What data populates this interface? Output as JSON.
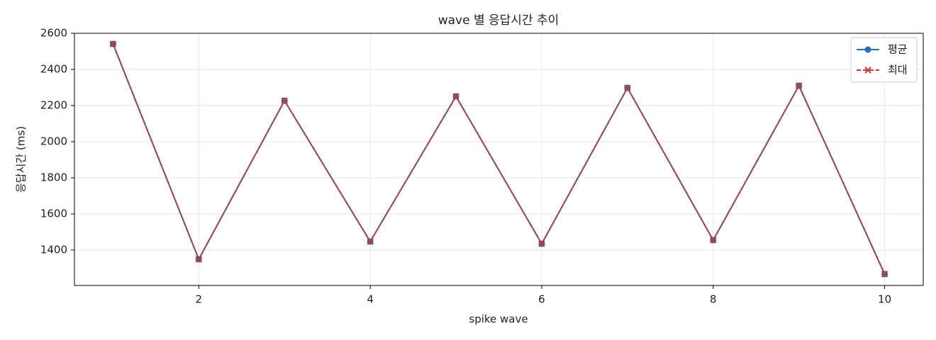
{
  "chart_data": {
    "type": "line",
    "title": "wave 별 응답시간 추이",
    "x_label": "spike wave",
    "y_label": "응답시간 (ms)",
    "x": [
      1,
      2,
      3,
      4,
      5,
      6,
      7,
      8,
      9,
      10
    ],
    "series": [
      {
        "name": "평균",
        "color": "#1f6dbf",
        "marker": "o",
        "dashed": false,
        "values": [
          2541,
          1349,
          2227,
          1447,
          2251,
          1435,
          2298,
          1455,
          2310,
          1267
        ]
      },
      {
        "name": "최대",
        "color": "#d03434",
        "marker": "x",
        "dashed": true,
        "values": [
          2541,
          1349,
          2227,
          1447,
          2251,
          1435,
          2298,
          1455,
          2310,
          1267
        ]
      }
    ],
    "xlim": [
      0.55,
      10.45
    ],
    "xticks": [
      2,
      4,
      6,
      8,
      10
    ],
    "ylim": [
      1204,
      2600
    ],
    "yticks": [
      1400,
      1600,
      1800,
      2000,
      2200,
      2400,
      2600
    ],
    "grid": true,
    "legend": "upper right"
  }
}
